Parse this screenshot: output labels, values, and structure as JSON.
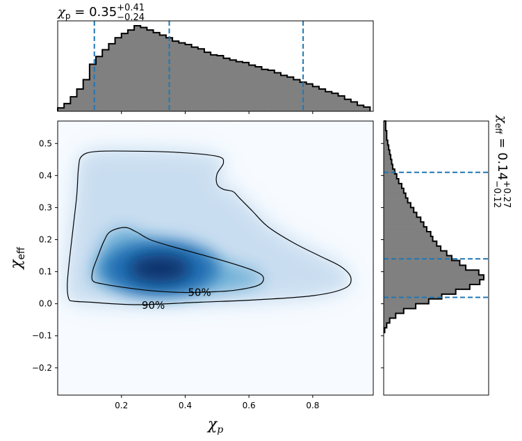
{
  "chart_data": [
    {
      "panel": "top-marginal",
      "type": "histogram",
      "title_text": {
        "symbol": "χ",
        "sub": "p",
        "median": " = 0.35",
        "plus": "+0.41",
        "minus": "−0.24"
      },
      "xlim": [
        0.0,
        0.99
      ],
      "bin_edges": [
        0.0,
        0.02,
        0.04,
        0.06,
        0.08,
        0.1,
        0.12,
        0.14,
        0.16,
        0.18,
        0.2,
        0.22,
        0.24,
        0.26,
        0.28,
        0.3,
        0.32,
        0.34,
        0.36,
        0.38,
        0.4,
        0.42,
        0.44,
        0.46,
        0.48,
        0.5,
        0.52,
        0.54,
        0.56,
        0.58,
        0.6,
        0.62,
        0.64,
        0.66,
        0.68,
        0.7,
        0.72,
        0.74,
        0.76,
        0.78,
        0.8,
        0.82,
        0.84,
        0.86,
        0.88,
        0.9,
        0.92,
        0.94,
        0.96,
        0.98
      ],
      "density": [
        0.04,
        0.09,
        0.17,
        0.26,
        0.37,
        0.55,
        0.64,
        0.72,
        0.79,
        0.86,
        0.91,
        0.95,
        1.0,
        0.98,
        0.95,
        0.92,
        0.89,
        0.86,
        0.82,
        0.8,
        0.78,
        0.75,
        0.73,
        0.69,
        0.66,
        0.65,
        0.62,
        0.6,
        0.58,
        0.57,
        0.54,
        0.52,
        0.49,
        0.48,
        0.45,
        0.42,
        0.4,
        0.37,
        0.34,
        0.32,
        0.29,
        0.26,
        0.23,
        0.21,
        0.18,
        0.14,
        0.11,
        0.07,
        0.05
      ],
      "quantile_lines": [
        0.115,
        0.35,
        0.77
      ],
      "fill_color": "#808080",
      "line_color": "#1f77b4"
    },
    {
      "panel": "right-marginal",
      "type": "histogram",
      "orientation": "horizontal",
      "title_text": {
        "symbol": "χ",
        "sub": "eff",
        "median": " = 0.14",
        "plus": "+0.27",
        "minus": "−0.12"
      },
      "ylim": [
        -0.285,
        0.57
      ],
      "bin_edges": [
        -0.09,
        -0.075,
        -0.06,
        -0.045,
        -0.03,
        -0.015,
        0.0,
        0.015,
        0.03,
        0.045,
        0.06,
        0.075,
        0.09,
        0.105,
        0.12,
        0.135,
        0.15,
        0.165,
        0.18,
        0.195,
        0.21,
        0.225,
        0.24,
        0.255,
        0.27,
        0.285,
        0.3,
        0.315,
        0.33,
        0.345,
        0.36,
        0.375,
        0.39,
        0.405,
        0.42,
        0.435,
        0.45,
        0.465,
        0.48,
        0.495,
        0.51,
        0.525,
        0.54,
        0.555,
        0.57
      ],
      "density": [
        0.01,
        0.03,
        0.06,
        0.12,
        0.2,
        0.32,
        0.45,
        0.58,
        0.72,
        0.86,
        0.96,
        1.0,
        0.95,
        0.82,
        0.76,
        0.68,
        0.63,
        0.57,
        0.53,
        0.49,
        0.47,
        0.43,
        0.4,
        0.37,
        0.33,
        0.3,
        0.27,
        0.24,
        0.22,
        0.2,
        0.18,
        0.15,
        0.13,
        0.11,
        0.09,
        0.08,
        0.07,
        0.06,
        0.05,
        0.04,
        0.03,
        0.03,
        0.02,
        0.02
      ],
      "quantile_lines": [
        0.02,
        0.14,
        0.41
      ],
      "fill_color": "#808080",
      "line_color": "#1f77b4"
    },
    {
      "panel": "joint-density",
      "type": "heatmap",
      "xlabel": {
        "symbol": "χ",
        "sub": "p"
      },
      "ylabel": {
        "symbol": "χ",
        "sub": "eff"
      },
      "xlim": [
        0.0,
        0.99
      ],
      "ylim": [
        -0.285,
        0.57
      ],
      "xticks": [
        0.2,
        0.4,
        0.6,
        0.8
      ],
      "yticks": [
        -0.2,
        -0.1,
        0.0,
        0.1,
        0.2,
        0.3,
        0.4,
        0.5
      ],
      "xtick_labels": [
        "0.2",
        "0.4",
        "0.6",
        "0.8"
      ],
      "ytick_labels": [
        "−0.2",
        "−0.1",
        "0.0",
        "0.1",
        "0.2",
        "0.3",
        "0.4",
        "0.5"
      ],
      "colormap": "Blues",
      "density_peak": {
        "x": 0.32,
        "y": 0.11
      },
      "contours": [
        {
          "label": "50%",
          "label_at": {
            "x": 0.445,
            "y": 0.035
          },
          "points": [
            [
              0.11,
              0.072
            ],
            [
              0.11,
              0.103
            ],
            [
              0.125,
              0.145
            ],
            [
              0.145,
              0.195
            ],
            [
              0.165,
              0.225
            ],
            [
              0.21,
              0.238
            ],
            [
              0.245,
              0.225
            ],
            [
              0.29,
              0.2
            ],
            [
              0.36,
              0.178
            ],
            [
              0.455,
              0.152
            ],
            [
              0.54,
              0.128
            ],
            [
              0.615,
              0.103
            ],
            [
              0.645,
              0.083
            ],
            [
              0.63,
              0.058
            ],
            [
              0.555,
              0.042
            ],
            [
              0.48,
              0.037
            ],
            [
              0.4,
              0.035
            ],
            [
              0.3,
              0.04
            ],
            [
              0.2,
              0.052
            ],
            [
              0.14,
              0.062
            ]
          ]
        },
        {
          "label": "90%",
          "label_at": {
            "x": 0.3,
            "y": -0.005
          },
          "points": [
            [
              0.035,
              0.015
            ],
            [
              0.03,
              0.055
            ],
            [
              0.035,
              0.12
            ],
            [
              0.05,
              0.25
            ],
            [
              0.06,
              0.34
            ],
            [
              0.065,
              0.42
            ],
            [
              0.075,
              0.46
            ],
            [
              0.12,
              0.475
            ],
            [
              0.24,
              0.476
            ],
            [
              0.38,
              0.472
            ],
            [
              0.5,
              0.46
            ],
            [
              0.52,
              0.44
            ],
            [
              0.5,
              0.405
            ],
            [
              0.5,
              0.373
            ],
            [
              0.52,
              0.357
            ],
            [
              0.55,
              0.35
            ],
            [
              0.57,
              0.33
            ],
            [
              0.61,
              0.29
            ],
            [
              0.66,
              0.24
            ],
            [
              0.74,
              0.19
            ],
            [
              0.82,
              0.15
            ],
            [
              0.89,
              0.115
            ],
            [
              0.92,
              0.08
            ],
            [
              0.9,
              0.048
            ],
            [
              0.8,
              0.025
            ],
            [
              0.62,
              0.012
            ],
            [
              0.45,
              0.005
            ],
            [
              0.25,
              -0.003
            ],
            [
              0.1,
              0.005
            ],
            [
              0.05,
              0.008
            ]
          ]
        }
      ]
    }
  ]
}
